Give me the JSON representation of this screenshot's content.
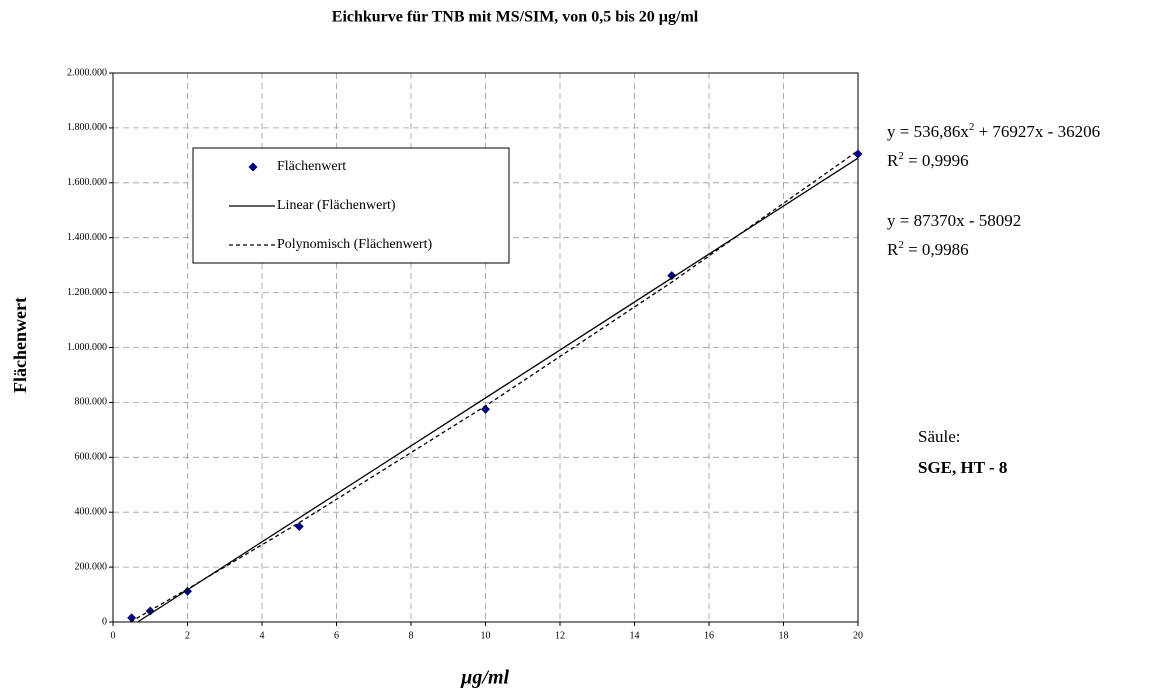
{
  "chart_data": {
    "type": "scatter",
    "title": "Eichkurve für TNB  mit  MS/SIM,  von  0,5  bis  20 µg/ml",
    "x_label": "µg/ml",
    "y_label": "Flächenwert",
    "xlim": [
      0,
      20
    ],
    "xticks": [
      0,
      2,
      4,
      6,
      8,
      10,
      12,
      14,
      16,
      18,
      20
    ],
    "ylim": [
      0,
      2000000
    ],
    "yticks": [
      0,
      {
        "value": 200000,
        "label": "200.000"
      },
      {
        "value": 400000,
        "label": "400.000"
      },
      {
        "value": 600000,
        "label": "600.000"
      },
      {
        "value": 800000,
        "label": "800.000"
      },
      {
        "value": 1000000,
        "label": "1.000.000"
      },
      {
        "value": 1200000,
        "label": "1.200.000"
      },
      {
        "value": 1400000,
        "label": "1.400.000"
      },
      {
        "value": 1600000,
        "label": "1.600.000"
      },
      {
        "value": 1800000,
        "label": "1.800.000"
      },
      {
        "value": 2000000,
        "label": "2.000.000"
      }
    ],
    "grid": true,
    "series": [
      {
        "name": "Flächenwert",
        "style": "marker",
        "color": "#000080",
        "x": [
          0.5,
          1,
          2,
          5,
          10,
          15,
          20
        ],
        "values": [
          15000,
          40000,
          112000,
          348000,
          775000,
          1262000,
          1705000
        ]
      },
      {
        "name": "Linear (Flächenwert)",
        "style": "solid",
        "color": "#000000",
        "x": [
          0.66,
          20
        ],
        "values": [
          0,
          1690000
        ]
      },
      {
        "name": "Polynomisch (Flächenwert)",
        "style": "dotted",
        "color": "#000000",
        "x": [
          0.47,
          2,
          5,
          10,
          15,
          20
        ],
        "values": [
          0,
          120000,
          362000,
          787000,
          1238000,
          1717000
        ]
      }
    ],
    "annotations": [
      {
        "y_line": [
          "y = 536,86x",
          "2",
          " + 76927x - 36206"
        ],
        "r_line": [
          "R",
          "2",
          " = 0,9996"
        ]
      },
      {
        "y_line": [
          "y = 87370x - 58092"
        ],
        "r_line": [
          "R",
          "2",
          " = 0,9986"
        ]
      }
    ],
    "column_note": {
      "label": "Säule:",
      "value": "SGE, HT - 8"
    }
  }
}
